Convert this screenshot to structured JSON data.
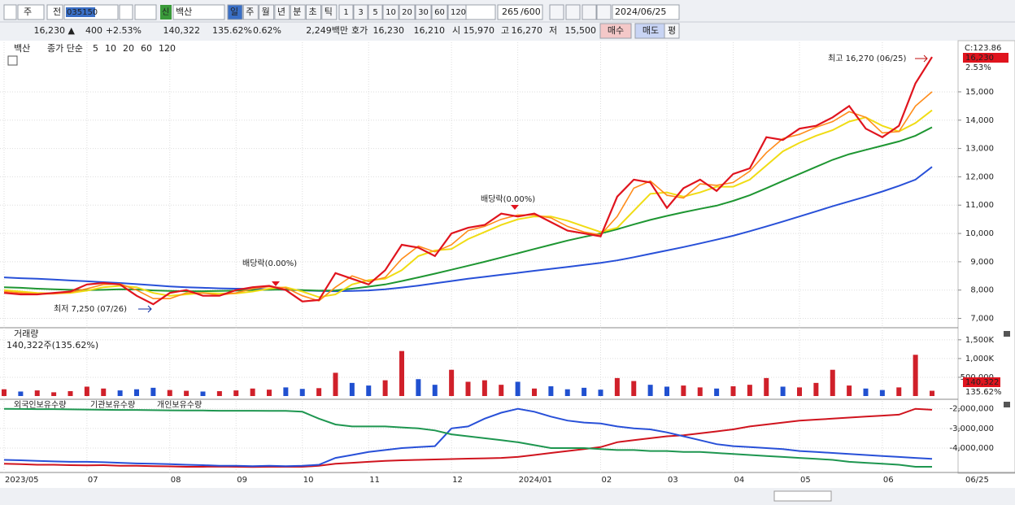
{
  "toolbar": {
    "type_buttons": [
      "주",
      "전"
    ],
    "code": "035150",
    "badge": "신",
    "name": "백산",
    "periods": [
      "일",
      "주",
      "월",
      "년",
      "분",
      "초",
      "틱"
    ],
    "intervals": [
      "1",
      "3",
      "5",
      "10",
      "20",
      "30",
      "60",
      "120"
    ],
    "count": "265",
    "total": "/600",
    "date": "2024/06/25"
  },
  "quote": {
    "items": [
      "16,230 ▲",
      "400",
      "+2.53%",
      "140,322",
      "135.62%",
      "0.62%",
      "2,249백만",
      "호가",
      "16,230",
      "16,210",
      "시",
      "15,970",
      "고",
      "16,270",
      "저",
      "15,500"
    ],
    "buttons": [
      "매수",
      "매도",
      "평"
    ]
  },
  "chart_data": [
    {
      "type": "line",
      "name": "백산",
      "legend_label": "종가 단순",
      "categories": [
        "2023/05",
        null,
        null,
        null,
        null,
        "07",
        null,
        null,
        null,
        null,
        "08",
        null,
        null,
        null,
        "09",
        null,
        null,
        null,
        "10",
        null,
        null,
        null,
        "11",
        null,
        null,
        null,
        null,
        "12",
        null,
        null,
        null,
        "2024/01",
        null,
        null,
        null,
        null,
        "02",
        null,
        null,
        null,
        "03",
        null,
        null,
        null,
        "04",
        null,
        null,
        null,
        "05",
        null,
        null,
        null,
        null,
        "06",
        null,
        null,
        null
      ],
      "x_end_label": "06/25",
      "series": [
        {
          "name": "5",
          "color": "#e0141e",
          "values": [
            7900,
            7850,
            7850,
            7900,
            7950,
            8200,
            8250,
            8200,
            7800,
            7500,
            7900,
            8000,
            7800,
            7800,
            8000,
            8100,
            8150,
            8000,
            7600,
            7650,
            8600,
            8400,
            8200,
            8700,
            9600,
            9500,
            9200,
            10000,
            10200,
            10300,
            10700,
            10600,
            10700,
            10400,
            10100,
            10000,
            9900,
            11300,
            11900,
            11800,
            10900,
            11600,
            11900,
            11500,
            12100,
            12300,
            13400,
            13300,
            13700,
            13800,
            14100,
            14500,
            13700,
            13400,
            13800,
            15300,
            16230
          ]
        },
        {
          "name": "10",
          "color": "#ff8c1a",
          "values": [
            7950,
            7900,
            7860,
            7870,
            7920,
            8050,
            8200,
            8220,
            8000,
            7700,
            7700,
            7900,
            7900,
            7820,
            7900,
            8050,
            8120,
            8080,
            7800,
            7620,
            8100,
            8500,
            8300,
            8450,
            9100,
            9550,
            9350,
            9600,
            10100,
            10250,
            10500,
            10650,
            10650,
            10550,
            10250,
            10050,
            9950,
            10600,
            11600,
            11850,
            11350,
            11250,
            11750,
            11700,
            11800,
            12200,
            12850,
            13350,
            13500,
            13750,
            13950,
            14300,
            14100,
            13550,
            13600,
            14500,
            15000
          ]
        },
        {
          "name": "20",
          "color": "#f0dc14",
          "values": [
            8000,
            7950,
            7900,
            7880,
            7900,
            7980,
            8100,
            8150,
            8100,
            7900,
            7800,
            7850,
            7900,
            7880,
            7880,
            7950,
            8050,
            8100,
            7950,
            7750,
            7850,
            8200,
            8350,
            8400,
            8700,
            9200,
            9400,
            9450,
            9800,
            10050,
            10300,
            10500,
            10600,
            10600,
            10450,
            10250,
            10050,
            10200,
            10800,
            11400,
            11450,
            11300,
            11450,
            11650,
            11650,
            11900,
            12400,
            12900,
            13200,
            13450,
            13650,
            13950,
            14100,
            13800,
            13600,
            13900,
            14350
          ]
        },
        {
          "name": "60",
          "color": "#1e9632",
          "values": [
            8100,
            8080,
            8050,
            8030,
            8010,
            8000,
            8010,
            8030,
            8020,
            7990,
            7970,
            7960,
            7960,
            7970,
            7980,
            8000,
            8010,
            8020,
            8000,
            7980,
            7990,
            8050,
            8120,
            8200,
            8320,
            8450,
            8580,
            8720,
            8860,
            9000,
            9150,
            9300,
            9450,
            9600,
            9750,
            9880,
            10000,
            10150,
            10320,
            10480,
            10620,
            10750,
            10870,
            10980,
            11150,
            11350,
            11600,
            11850,
            12100,
            12350,
            12600,
            12800,
            12950,
            13100,
            13250,
            13450,
            13750
          ]
        },
        {
          "name": "120",
          "color": "#2850d8",
          "values": [
            8450,
            8420,
            8400,
            8370,
            8340,
            8310,
            8280,
            8250,
            8210,
            8170,
            8130,
            8100,
            8080,
            8060,
            8050,
            8040,
            8030,
            8010,
            7990,
            7970,
            7960,
            7970,
            7990,
            8030,
            8090,
            8160,
            8240,
            8320,
            8400,
            8470,
            8540,
            8610,
            8680,
            8750,
            8820,
            8890,
            8960,
            9050,
            9160,
            9280,
            9400,
            9520,
            9650,
            9780,
            9920,
            10080,
            10250,
            10420,
            10600,
            10780,
            10960,
            11130,
            11300,
            11480,
            11680,
            11900,
            12350
          ]
        }
      ],
      "ylim": [
        6700,
        16750
      ],
      "yticks": [
        {
          "value": 7000,
          "label": "7,000"
        },
        {
          "value": 8000,
          "label": "8,000"
        },
        {
          "value": 9000,
          "label": "9,000"
        },
        {
          "value": 10000,
          "label": "10,000"
        },
        {
          "value": 11000,
          "label": "11,000"
        },
        {
          "value": 12000,
          "label": "12,000"
        },
        {
          "value": 13000,
          "label": "13,000"
        },
        {
          "value": 14000,
          "label": "14,000"
        },
        {
          "value": 15000,
          "label": "15,000"
        }
      ],
      "grid": true,
      "right_labels": [
        "C:123.86",
        "16,230",
        "2.53%"
      ],
      "annotations": [
        "최고 16,270 (06/25)",
        "최저 7,250 (07/26)",
        "배당락(0.00%)",
        "배당락(0.00%)"
      ]
    },
    {
      "type": "bar",
      "title": "거래량",
      "subtitle": "140,322주(135.62%)",
      "values": [
        180000,
        120000,
        150000,
        100000,
        130000,
        250000,
        200000,
        150000,
        180000,
        220000,
        160000,
        140000,
        120000,
        130000,
        150000,
        200000,
        170000,
        230000,
        190000,
        210000,
        620000,
        350000,
        280000,
        420000,
        1200000,
        450000,
        300000,
        700000,
        380000,
        420000,
        300000,
        380000,
        200000,
        260000,
        180000,
        220000,
        170000,
        480000,
        400000,
        300000,
        250000,
        280000,
        230000,
        200000,
        260000,
        300000,
        480000,
        250000,
        230000,
        350000,
        700000,
        280000,
        200000,
        160000,
        230000,
        1100000,
        140322
      ],
      "up_color": "#d0202a",
      "down_color": "#2050d0",
      "ylim": [
        0,
        1800000
      ],
      "yticks": [
        {
          "value": 500000,
          "label": "500,000"
        },
        {
          "value": 1000000,
          "label": "1,000K"
        },
        {
          "value": 1500000,
          "label": "1,500K"
        }
      ],
      "right_labels": [
        "140,322",
        "135.62%"
      ]
    },
    {
      "type": "line",
      "series": [
        {
          "name": "외국인보유수량",
          "color": "#d0141e",
          "values": [
            -4800000,
            -4820000,
            -4850000,
            -4850000,
            -4870000,
            -4880000,
            -4870000,
            -4900000,
            -4900000,
            -4920000,
            -4930000,
            -4950000,
            -4950000,
            -4940000,
            -4950000,
            -4960000,
            -4950000,
            -4950000,
            -4950000,
            -4900000,
            -4800000,
            -4750000,
            -4700000,
            -4650000,
            -4620000,
            -4600000,
            -4580000,
            -4560000,
            -4540000,
            -4520000,
            -4500000,
            -4450000,
            -4350000,
            -4250000,
            -4150000,
            -4050000,
            -3950000,
            -3700000,
            -3600000,
            -3500000,
            -3400000,
            -3350000,
            -3250000,
            -3150000,
            -3050000,
            -2900000,
            -2800000,
            -2700000,
            -2600000,
            -2550000,
            -2500000,
            -2450000,
            -2400000,
            -2350000,
            -2300000,
            -2000000,
            -2050000
          ]
        },
        {
          "name": "기관보유수량",
          "color": "#2850d8",
          "values": [
            -4600000,
            -4620000,
            -4650000,
            -4680000,
            -4700000,
            -4700000,
            -4720000,
            -4750000,
            -4780000,
            -4800000,
            -4820000,
            -4850000,
            -4870000,
            -4900000,
            -4900000,
            -4920000,
            -4900000,
            -4920000,
            -4900000,
            -4850000,
            -4500000,
            -4350000,
            -4200000,
            -4100000,
            -4000000,
            -3950000,
            -3900000,
            -3000000,
            -2900000,
            -2500000,
            -2200000,
            -2000000,
            -2150000,
            -2400000,
            -2600000,
            -2700000,
            -2750000,
            -2900000,
            -3000000,
            -3050000,
            -3200000,
            -3400000,
            -3600000,
            -3800000,
            -3900000,
            -3950000,
            -4000000,
            -4050000,
            -4150000,
            -4200000,
            -4250000,
            -4300000,
            -4350000,
            -4400000,
            -4450000,
            -4500000,
            -4550000
          ]
        },
        {
          "name": "개인보유수량",
          "color": "#1e9650",
          "values": [
            -2000000,
            -2010000,
            -2020000,
            -2020000,
            -2030000,
            -2040000,
            -2050000,
            -2060000,
            -2060000,
            -2070000,
            -2080000,
            -2090000,
            -2090000,
            -2100000,
            -2100000,
            -2100000,
            -2110000,
            -2110000,
            -2150000,
            -2500000,
            -2800000,
            -2900000,
            -2900000,
            -2900000,
            -2950000,
            -3000000,
            -3100000,
            -3300000,
            -3400000,
            -3500000,
            -3600000,
            -3700000,
            -3850000,
            -4000000,
            -4000000,
            -4000000,
            -4050000,
            -4100000,
            -4100000,
            -4150000,
            -4150000,
            -4200000,
            -4200000,
            -4250000,
            -4300000,
            -4350000,
            -4400000,
            -4450000,
            -4500000,
            -4550000,
            -4600000,
            -4700000,
            -4750000,
            -4800000,
            -4850000,
            -4950000,
            -4950000
          ]
        }
      ],
      "ylim": [
        -5200000,
        -1600000
      ],
      "yticks": [
        {
          "value": -2000000,
          "label": "-2,000,000"
        },
        {
          "value": -3000000,
          "label": "-3,000,000"
        },
        {
          "value": -4000000,
          "label": "-4,000,000"
        }
      ]
    }
  ]
}
